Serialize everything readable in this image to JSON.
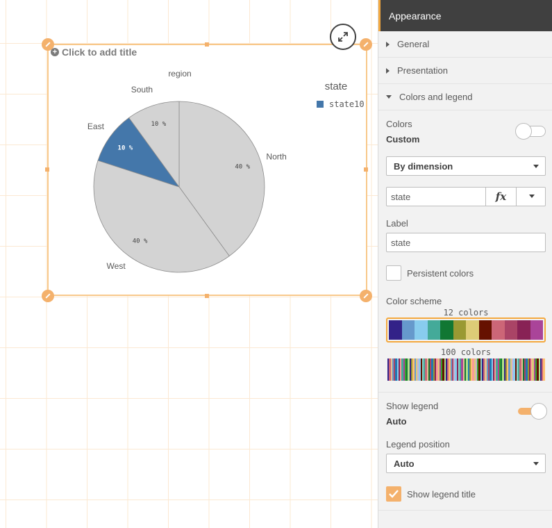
{
  "chart_title_placeholder": "Click to add title",
  "chart_data": {
    "type": "pie",
    "title": "region",
    "legend_title": "state",
    "legend_items": [
      {
        "label": "state10",
        "color": "#4477aa"
      }
    ],
    "slices": [
      {
        "label": "North",
        "value": 40,
        "pct_label": "40 %",
        "color": "#d3d3d3"
      },
      {
        "label": "West",
        "value": 40,
        "pct_label": "40 %",
        "color": "#d3d3d3"
      },
      {
        "label": "East",
        "value": 10,
        "pct_label": "10 %",
        "color": "#4477aa"
      },
      {
        "label": "South",
        "value": 10,
        "pct_label": "10 %",
        "color": "#d3d3d3"
      }
    ]
  },
  "panel": {
    "header": "Appearance",
    "sections": {
      "general": "General",
      "presentation": "Presentation",
      "colors_legend": "Colors and legend"
    },
    "colors": {
      "label": "Colors",
      "mode": "Custom",
      "toggle_on": false,
      "color_by": "By dimension",
      "field_value": "state",
      "fx_label": "fx",
      "label_title": "Label",
      "label_value": "state",
      "persistent_label": "Persistent colors",
      "persistent_checked": false,
      "scheme_title": "Color scheme",
      "scheme_12_caption": "12 colors",
      "scheme_100_caption": "100 colors",
      "scheme_12_colors": [
        "#332288",
        "#6699cc",
        "#88ccee",
        "#44aa99",
        "#117733",
        "#999933",
        "#ddcc77",
        "#661100",
        "#cc6677",
        "#aa4466",
        "#882255",
        "#aa4499"
      ]
    },
    "legend": {
      "show_label": "Show legend",
      "show_value": "Auto",
      "toggle_on": true,
      "position_label": "Legend position",
      "position_value": "Auto",
      "show_title_label": "Show legend title",
      "show_title_checked": true
    }
  },
  "accent_color": "#f4b16c"
}
